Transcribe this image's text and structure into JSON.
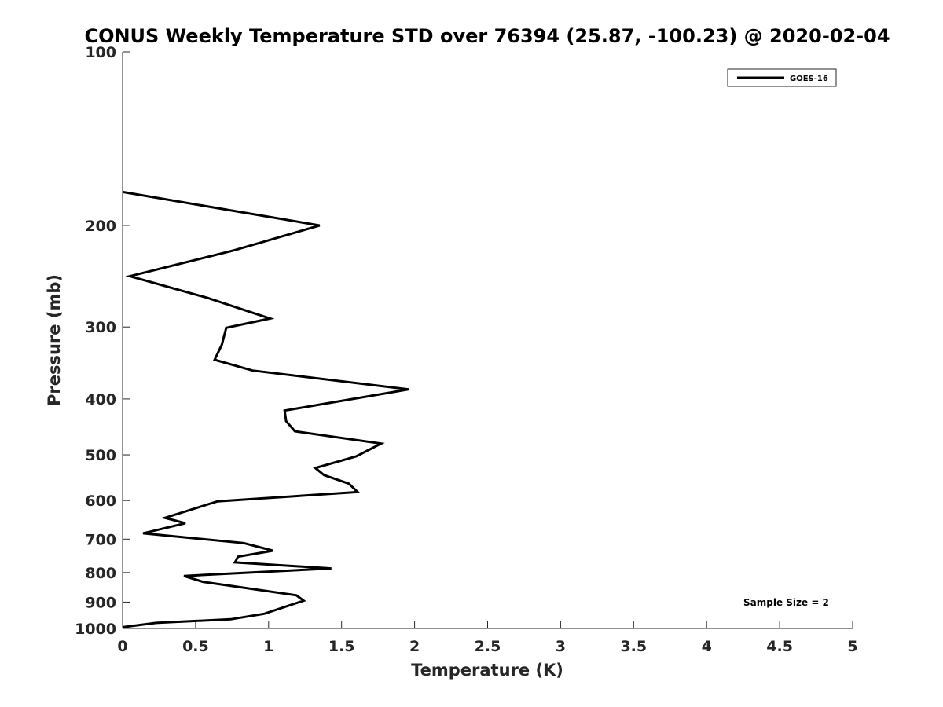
{
  "chart_data": {
    "type": "line",
    "title": "CONUS Weekly Temperature STD over 76394 (25.87, -100.23) @ 2020-02-04",
    "xlabel": "Temperature (K)",
    "ylabel": "Pressure (mb)",
    "xlim": [
      0,
      5
    ],
    "ylim": [
      100,
      1000
    ],
    "y_scale": "log",
    "y_reversed": true,
    "x_ticks": [
      0,
      0.5,
      1,
      1.5,
      2,
      2.5,
      3,
      3.5,
      4,
      4.5,
      5
    ],
    "x_tick_labels": [
      "0",
      "0.5",
      "1",
      "1.5",
      "2",
      "2.5",
      "3",
      "3.5",
      "4",
      "4.5",
      "5"
    ],
    "y_ticks": [
      100,
      200,
      300,
      400,
      500,
      600,
      700,
      800,
      900,
      1000
    ],
    "y_tick_labels": [
      "100",
      "200",
      "300",
      "400",
      "500",
      "600",
      "700",
      "800",
      "900",
      "1000"
    ],
    "grid": false,
    "legend_position": "top-right",
    "annotation": "Sample Size = 2",
    "series": [
      {
        "name": "GOES-16",
        "color": "#000000",
        "points": [
          [
            0.0,
            175
          ],
          [
            1.35,
            200
          ],
          [
            0.76,
            221
          ],
          [
            0.05,
            245
          ],
          [
            0.58,
            267
          ],
          [
            1.01,
            290
          ],
          [
            0.71,
            301
          ],
          [
            0.68,
            322
          ],
          [
            0.63,
            342
          ],
          [
            0.89,
            357
          ],
          [
            1.96,
            385
          ],
          [
            1.45,
            405
          ],
          [
            1.11,
            419
          ],
          [
            1.12,
            437
          ],
          [
            1.18,
            455
          ],
          [
            1.77,
            478
          ],
          [
            1.6,
            503
          ],
          [
            1.32,
            527
          ],
          [
            1.38,
            542
          ],
          [
            1.55,
            561
          ],
          [
            1.61,
            580
          ],
          [
            0.65,
            602
          ],
          [
            0.29,
            643
          ],
          [
            0.43,
            657
          ],
          [
            0.14,
            684
          ],
          [
            0.83,
            711
          ],
          [
            1.03,
            733
          ],
          [
            0.79,
            751
          ],
          [
            0.77,
            768
          ],
          [
            1.43,
            787
          ],
          [
            0.42,
            811
          ],
          [
            0.55,
            830
          ],
          [
            1.19,
            876
          ],
          [
            1.24,
            895
          ],
          [
            0.97,
            943
          ],
          [
            0.74,
            964
          ],
          [
            0.23,
            978
          ],
          [
            0.0,
            995
          ]
        ]
      }
    ]
  }
}
